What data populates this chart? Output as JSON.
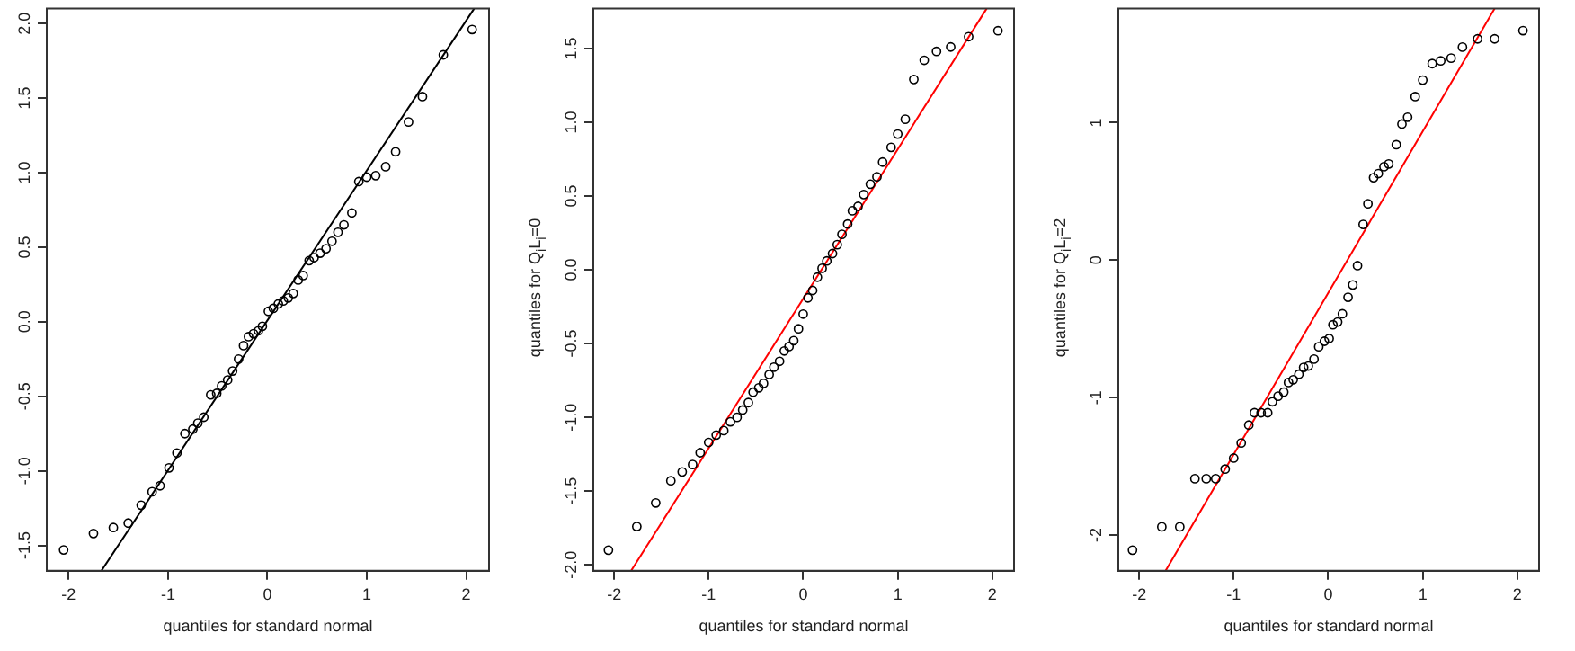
{
  "chart_data": [
    {
      "type": "scatter",
      "xlabel": "quantiles for standard normal",
      "xlim": [
        -2.22,
        2.23
      ],
      "xticks": [
        -2,
        -1,
        0,
        1,
        2
      ],
      "ylim": [
        -1.67,
        2.1
      ],
      "yticks": [
        {
          "value": -1.5,
          "label": "-1.5"
        },
        {
          "value": -1,
          "label": "-1.0"
        },
        {
          "value": -0.5,
          "label": "-0.5"
        },
        {
          "value": 0,
          "label": "0.0"
        },
        {
          "value": 0.5,
          "label": "0.5"
        },
        {
          "value": 1,
          "label": "1.0"
        },
        {
          "value": 1.5,
          "label": "1.5"
        },
        {
          "value": 2,
          "label": "2.0"
        }
      ],
      "marker": "circle",
      "series": [
        {
          "color": "#000000",
          "x": [
            -2.05,
            -1.75,
            -1.55,
            -1.4,
            -1.27,
            -1.16,
            -1.08,
            -0.99,
            -0.91,
            -0.83,
            -0.75,
            -0.7,
            -0.64,
            -0.57,
            -0.51,
            -0.46,
            -0.4,
            -0.35,
            -0.29,
            -0.24,
            -0.19,
            -0.14,
            -0.09,
            -0.05,
            0.01,
            0.06,
            0.11,
            0.16,
            0.21,
            0.26,
            0.31,
            0.36,
            0.42,
            0.47,
            0.53,
            0.59,
            0.65,
            0.71,
            0.77,
            0.85,
            0.92,
            1.0,
            1.09,
            1.19,
            1.29,
            1.42,
            1.56,
            1.77,
            2.06
          ],
          "values": [
            -1.53,
            -1.42,
            -1.38,
            -1.35,
            -1.23,
            -1.14,
            -1.1,
            -0.98,
            -0.88,
            -0.75,
            -0.72,
            -0.68,
            -0.64,
            -0.49,
            -0.48,
            -0.43,
            -0.39,
            -0.33,
            -0.25,
            -0.16,
            -0.1,
            -0.08,
            -0.06,
            -0.03,
            0.07,
            0.09,
            0.12,
            0.14,
            0.16,
            0.19,
            0.28,
            0.31,
            0.41,
            0.43,
            0.46,
            0.49,
            0.54,
            0.6,
            0.65,
            0.73,
            0.94,
            0.97,
            0.98,
            1.04,
            1.14,
            1.34,
            1.51,
            1.79,
            1.96
          ]
        },
        {
          "type": "line",
          "marker": "none",
          "color": "#000000",
          "x": [
            -1.67,
            2.08
          ],
          "values": [
            -1.67,
            2.1
          ]
        }
      ]
    },
    {
      "type": "scatter",
      "xlabel": "quantiles for standard normal",
      "ylabel": "quantiles for Q$_{i}$L$_{i}$=0",
      "xlim": [
        -2.22,
        2.23
      ],
      "xticks": [
        -2,
        -1,
        0,
        1,
        2
      ],
      "ylim": [
        -2.04,
        1.77
      ],
      "yticks": [
        {
          "value": -2,
          "label": "-2.0"
        },
        {
          "value": -1.5,
          "label": "-1.5"
        },
        {
          "value": -1,
          "label": "-1.0"
        },
        {
          "value": -0.5,
          "label": "-0.5"
        },
        {
          "value": 0,
          "label": "0.0"
        },
        {
          "value": 0.5,
          "label": "0.5"
        },
        {
          "value": 1,
          "label": "1.0"
        },
        {
          "value": 1.5,
          "label": "1.5"
        }
      ],
      "marker": "circle",
      "series": [
        {
          "color": "#000000",
          "x": [
            -2.06,
            -1.76,
            -1.56,
            -1.4,
            -1.28,
            -1.17,
            -1.09,
            -1.0,
            -0.92,
            -0.84,
            -0.77,
            -0.7,
            -0.64,
            -0.58,
            -0.53,
            -0.47,
            -0.42,
            -0.36,
            -0.31,
            -0.25,
            -0.2,
            -0.15,
            -0.1,
            -0.05,
            0.0,
            0.05,
            0.1,
            0.15,
            0.2,
            0.25,
            0.31,
            0.36,
            0.41,
            0.47,
            0.52,
            0.58,
            0.64,
            0.71,
            0.78,
            0.84,
            0.93,
            1.0,
            1.08,
            1.17,
            1.28,
            1.41,
            1.56,
            1.75,
            2.06
          ],
          "values": [
            -1.9,
            -1.74,
            -1.58,
            -1.43,
            -1.37,
            -1.32,
            -1.24,
            -1.17,
            -1.12,
            -1.09,
            -1.03,
            -1.0,
            -0.95,
            -0.9,
            -0.83,
            -0.8,
            -0.77,
            -0.71,
            -0.66,
            -0.62,
            -0.55,
            -0.52,
            -0.48,
            -0.4,
            -0.3,
            -0.19,
            -0.14,
            -0.05,
            0.01,
            0.06,
            0.11,
            0.17,
            0.24,
            0.31,
            0.4,
            0.43,
            0.51,
            0.58,
            0.63,
            0.73,
            0.83,
            0.92,
            1.02,
            1.29,
            1.42,
            1.48,
            1.51,
            1.58,
            1.62
          ]
        },
        {
          "type": "line",
          "marker": "none",
          "color": "#ff0000",
          "x": [
            -1.82,
            1.94
          ],
          "values": [
            -2.04,
            1.77
          ]
        }
      ]
    },
    {
      "type": "scatter",
      "xlabel": "quantiles for standard normal",
      "ylabel": "quantiles for Q$_{i}$L$_{i}$=2",
      "xlim": [
        -2.22,
        2.23
      ],
      "xticks": [
        -2,
        -1,
        0,
        1,
        2
      ],
      "ylim": [
        -2.26,
        1.83
      ],
      "yticks": [
        -2,
        -1,
        0,
        1
      ],
      "marker": "circle",
      "series": [
        {
          "color": "#000000",
          "x": [
            -2.07,
            -1.76,
            -1.57,
            -1.41,
            -1.29,
            -1.19,
            -1.09,
            -1.0,
            -0.92,
            -0.84,
            -0.78,
            -0.71,
            -0.64,
            -0.59,
            -0.53,
            -0.47,
            -0.42,
            -0.37,
            -0.31,
            -0.26,
            -0.21,
            -0.15,
            -0.1,
            -0.04,
            0.01,
            0.05,
            0.1,
            0.15,
            0.21,
            0.26,
            0.31,
            0.37,
            0.42,
            0.48,
            0.53,
            0.59,
            0.64,
            0.72,
            0.78,
            0.84,
            0.92,
            1.0,
            1.1,
            1.19,
            1.3,
            1.42,
            1.58,
            1.76,
            2.06
          ],
          "values": [
            -2.11,
            -1.94,
            -1.94,
            -1.59,
            -1.59,
            -1.59,
            -1.52,
            -1.44,
            -1.33,
            -1.2,
            -1.11,
            -1.11,
            -1.11,
            -1.03,
            -0.99,
            -0.96,
            -0.89,
            -0.87,
            -0.83,
            -0.78,
            -0.77,
            -0.72,
            -0.63,
            -0.59,
            -0.57,
            -0.47,
            -0.45,
            -0.39,
            -0.27,
            -0.18,
            -0.04,
            0.26,
            0.41,
            0.6,
            0.63,
            0.68,
            0.7,
            0.84,
            0.99,
            1.04,
            1.19,
            1.31,
            1.43,
            1.45,
            1.47,
            1.55,
            1.61,
            1.61,
            1.67
          ]
        },
        {
          "type": "line",
          "marker": "none",
          "color": "#ff0000",
          "x": [
            -1.72,
            1.76
          ],
          "values": [
            -2.26,
            1.83
          ]
        }
      ]
    }
  ]
}
